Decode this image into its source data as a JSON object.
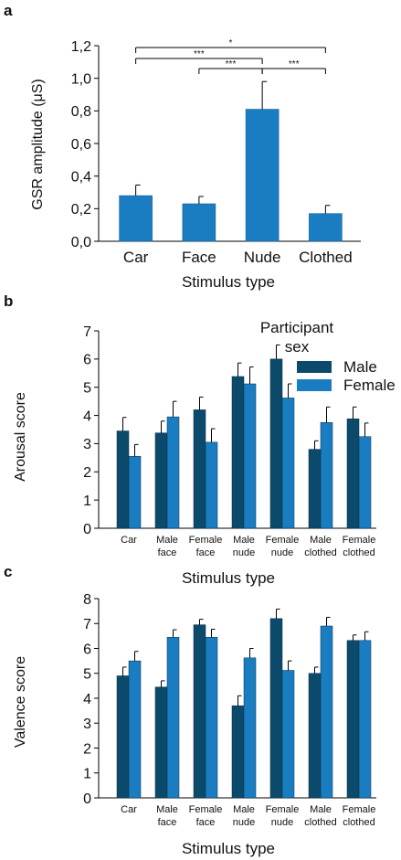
{
  "colors": {
    "male": "#0b4a6b",
    "female": "#1a7cc1",
    "single": "#1a7cc1",
    "axis": "#000000"
  },
  "chart_data": [
    {
      "type": "bar",
      "panel": "a",
      "categories": [
        "Car",
        "Face",
        "Nude",
        "Clothed"
      ],
      "series": [
        {
          "values": [
            0.28,
            0.23,
            0.81,
            0.17
          ],
          "errors": [
            0.065,
            0.045,
            0.17,
            0.05
          ]
        }
      ],
      "xlabel": "Stimulus type",
      "ylabel": "GSR amplitude (μS)",
      "ylim": [
        0,
        1.2
      ],
      "yticks": [
        "0,0",
        "0,2",
        "0,4",
        "0,6",
        "0,8",
        "1,0",
        "1,2"
      ],
      "significance": [
        {
          "from": "Car",
          "to": "Clothed",
          "label": "*"
        },
        {
          "from": "Car",
          "to": "Nude",
          "label": "***"
        },
        {
          "from": "Face",
          "to": "Nude",
          "label": "***"
        },
        {
          "from": "Nude",
          "to": "Clothed",
          "label": "***"
        }
      ]
    },
    {
      "type": "bar",
      "panel": "b",
      "categories": [
        "Car",
        "Male face",
        "Female face",
        "Male nude",
        "Female nude",
        "Male clothed",
        "Female clothed"
      ],
      "legend_title": "Participant sex",
      "legend_position": "top-right",
      "series": [
        {
          "name": "Male",
          "values": [
            3.45,
            3.38,
            4.2,
            5.38,
            6.0,
            2.8,
            3.88
          ],
          "errors": [
            0.48,
            0.42,
            0.45,
            0.48,
            0.5,
            0.3,
            0.42
          ]
        },
        {
          "name": "Female",
          "values": [
            2.55,
            3.95,
            3.05,
            5.12,
            4.62,
            3.75,
            3.25
          ],
          "errors": [
            0.42,
            0.55,
            0.48,
            0.6,
            0.5,
            0.55,
            0.48
          ]
        }
      ],
      "xlabel": "Stimulus type",
      "ylabel": "Arousal score",
      "ylim": [
        0,
        7
      ],
      "yticks": [
        "0",
        "1",
        "2",
        "3",
        "4",
        "5",
        "6",
        "7"
      ]
    },
    {
      "type": "bar",
      "panel": "c",
      "categories": [
        "Car",
        "Male face",
        "Female face",
        "Male nude",
        "Female nude",
        "Male clothed",
        "Female clothed"
      ],
      "series": [
        {
          "name": "Male",
          "values": [
            4.9,
            4.45,
            6.95,
            3.7,
            7.2,
            5.0,
            6.32
          ],
          "errors": [
            0.35,
            0.25,
            0.22,
            0.4,
            0.38,
            0.25,
            0.22
          ]
        },
        {
          "name": "Female",
          "values": [
            5.5,
            6.45,
            6.45,
            5.62,
            5.12,
            6.9,
            6.32
          ],
          "errors": [
            0.38,
            0.3,
            0.32,
            0.38,
            0.38,
            0.35,
            0.35
          ]
        }
      ],
      "xlabel": "Stimulus type",
      "ylabel": "Valence score",
      "ylim": [
        0,
        8
      ],
      "yticks": [
        "0",
        "1",
        "2",
        "3",
        "4",
        "5",
        "6",
        "7",
        "8"
      ]
    }
  ],
  "panels": {
    "a": {
      "letter": "a"
    },
    "b": {
      "letter": "b"
    },
    "c": {
      "letter": "c"
    }
  }
}
